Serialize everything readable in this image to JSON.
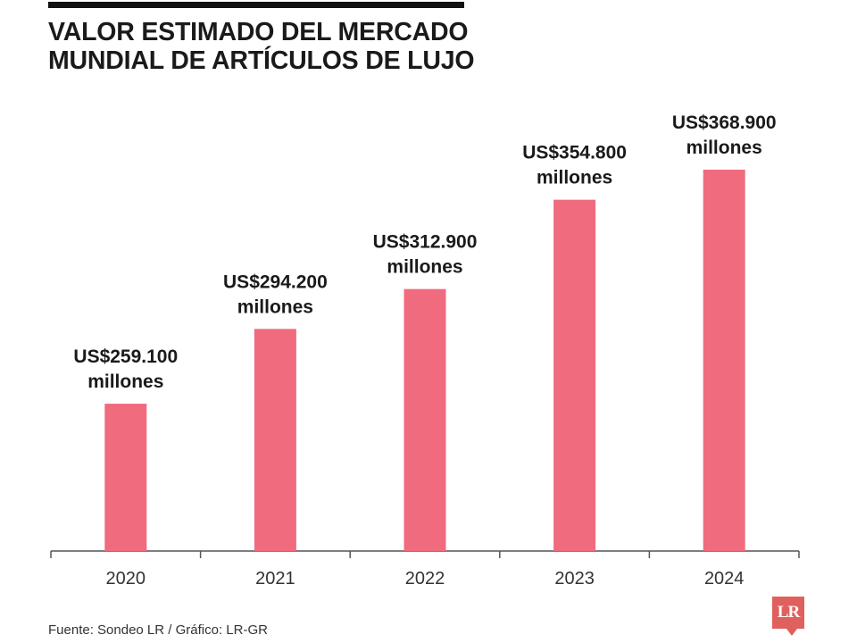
{
  "chart_data": {
    "type": "bar",
    "title": "VALOR ESTIMADO DEL MERCADO MUNDIAL DE ARTÍCULOS DE LUJO",
    "title_lines": [
      "VALOR ESTIMADO DEL MERCADO",
      "MUNDIAL DE ARTÍCULOS DE LUJO"
    ],
    "categories": [
      "2020",
      "2021",
      "2022",
      "2023",
      "2024"
    ],
    "values": [
      259100,
      294200,
      312900,
      354800,
      368900
    ],
    "data_labels": [
      [
        "US$259.100",
        "millones"
      ],
      [
        "US$294.200",
        "millones"
      ],
      [
        "US$312.900",
        "millones"
      ],
      [
        "US$354.800",
        "millones"
      ],
      [
        "US$368.900",
        "millones"
      ]
    ],
    "bar_color": "#f06b7e",
    "ylim": [
      0,
      368900
    ],
    "grid": false,
    "xlabel": "",
    "ylabel": ""
  },
  "footer": {
    "source": "Fuente: Sondeo LR / Gráfico: LR-GR",
    "logo_text": "LR",
    "logo_color": "#e0605d"
  }
}
